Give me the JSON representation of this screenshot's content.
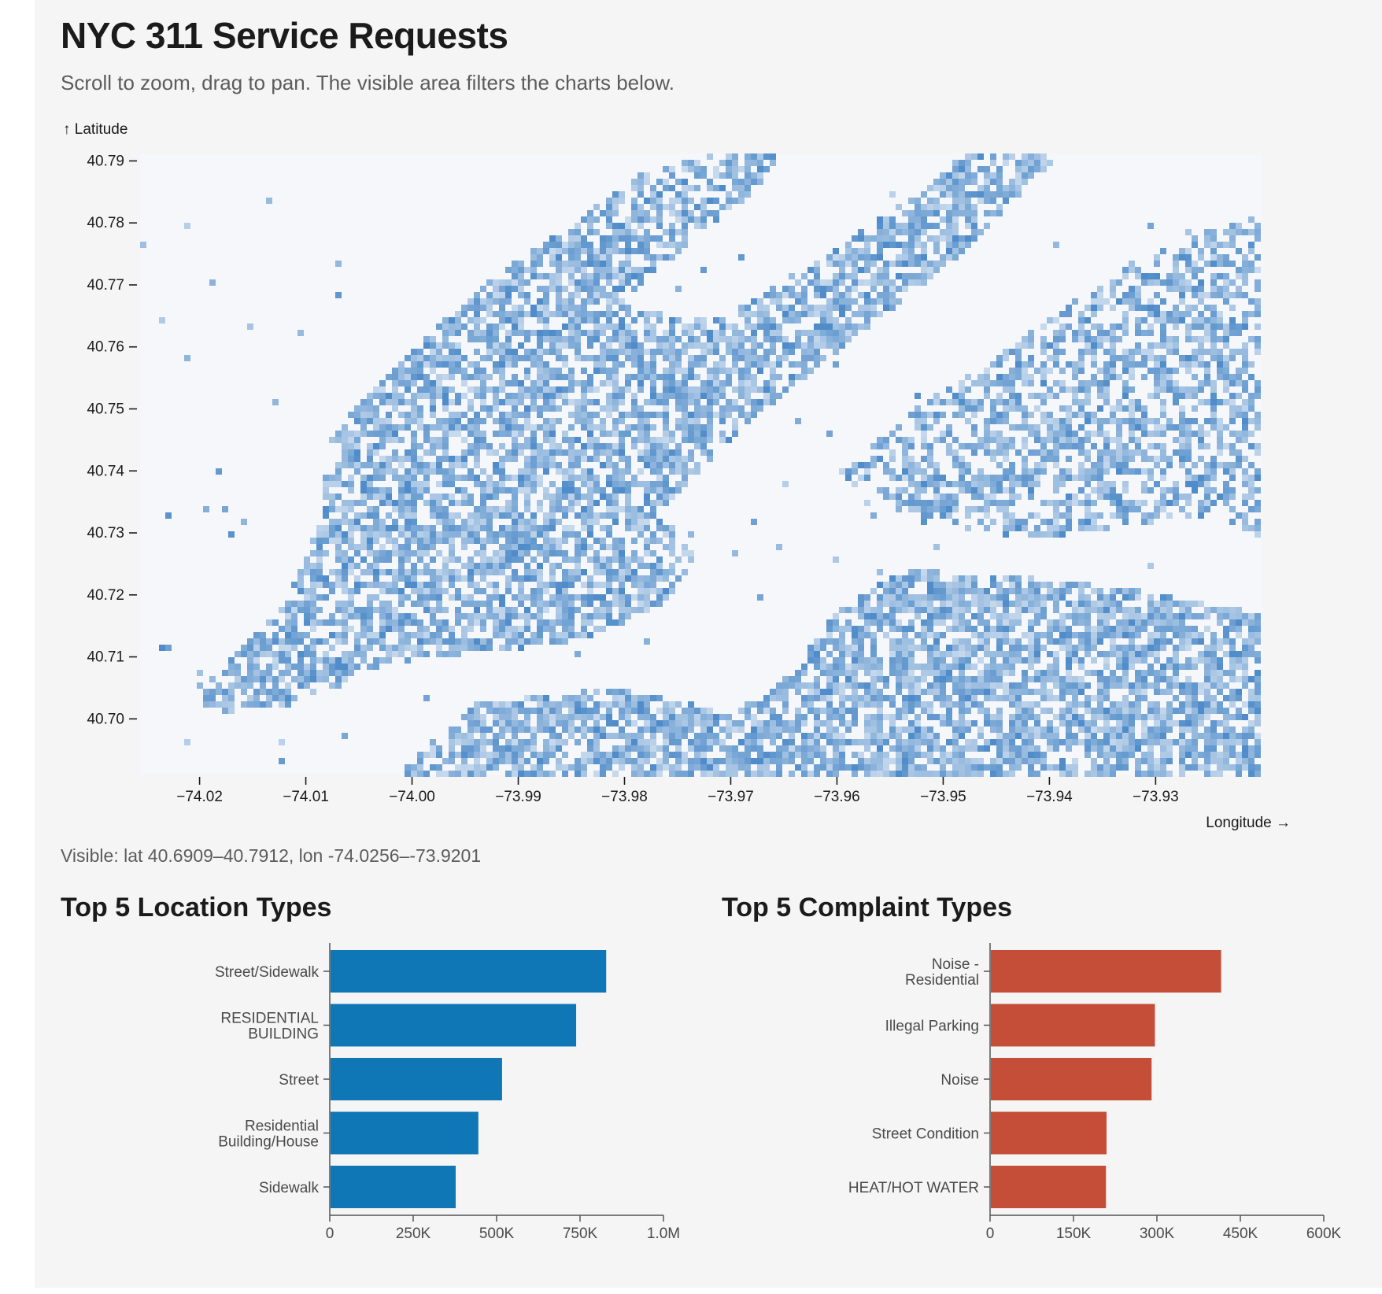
{
  "header": {
    "title": "NYC 311 Service Requests",
    "subtitle": "Scroll to zoom, drag to pan. The visible area filters the charts below."
  },
  "map": {
    "ylabel": "↑ Latitude",
    "xlabel": "Longitude →",
    "yticks": [
      "40.79",
      "40.78",
      "40.77",
      "40.76",
      "40.75",
      "40.74",
      "40.73",
      "40.72",
      "40.71",
      "40.70"
    ],
    "xticks": [
      "−74.02",
      "−74.01",
      "−74.00",
      "−73.99",
      "−73.98",
      "−73.97",
      "−73.96",
      "−73.95",
      "−73.94",
      "−73.93"
    ],
    "lat_range": [
      40.6909,
      40.7912
    ],
    "lon_range": [
      -74.0256,
      -73.9201
    ],
    "color_low": "#f5f7fb",
    "color_high": "#4f8cc9"
  },
  "status": {
    "visible_text": "Visible: lat 40.6909–40.7912, lon -74.0256–-73.9201"
  },
  "chart_data": [
    {
      "type": "bar",
      "orientation": "horizontal",
      "title": "Top 5 Location Types",
      "categories": [
        "Street/Sidewalk",
        "RESIDENTIAL BUILDING",
        "Street",
        "Residential Building/House",
        "Sidewalk"
      ],
      "values": [
        826000,
        736000,
        514000,
        443000,
        375000
      ],
      "xlim": [
        0,
        1000000
      ],
      "xticks": [
        "0",
        "250K",
        "500K",
        "750K",
        "1.0M"
      ],
      "color": "#0f77b5"
    },
    {
      "type": "bar",
      "orientation": "horizontal",
      "title": "Top 5 Complaint Types",
      "categories": [
        "Noise - Residential",
        "Illegal Parking",
        "Noise",
        "Street Condition",
        "HEAT/HOT WATER"
      ],
      "values": [
        414000,
        295000,
        289000,
        208000,
        207000
      ],
      "xlim": [
        0,
        600000
      ],
      "xticks": [
        "0",
        "150K",
        "300K",
        "450K",
        "600K"
      ],
      "color": "#c44e37"
    }
  ]
}
